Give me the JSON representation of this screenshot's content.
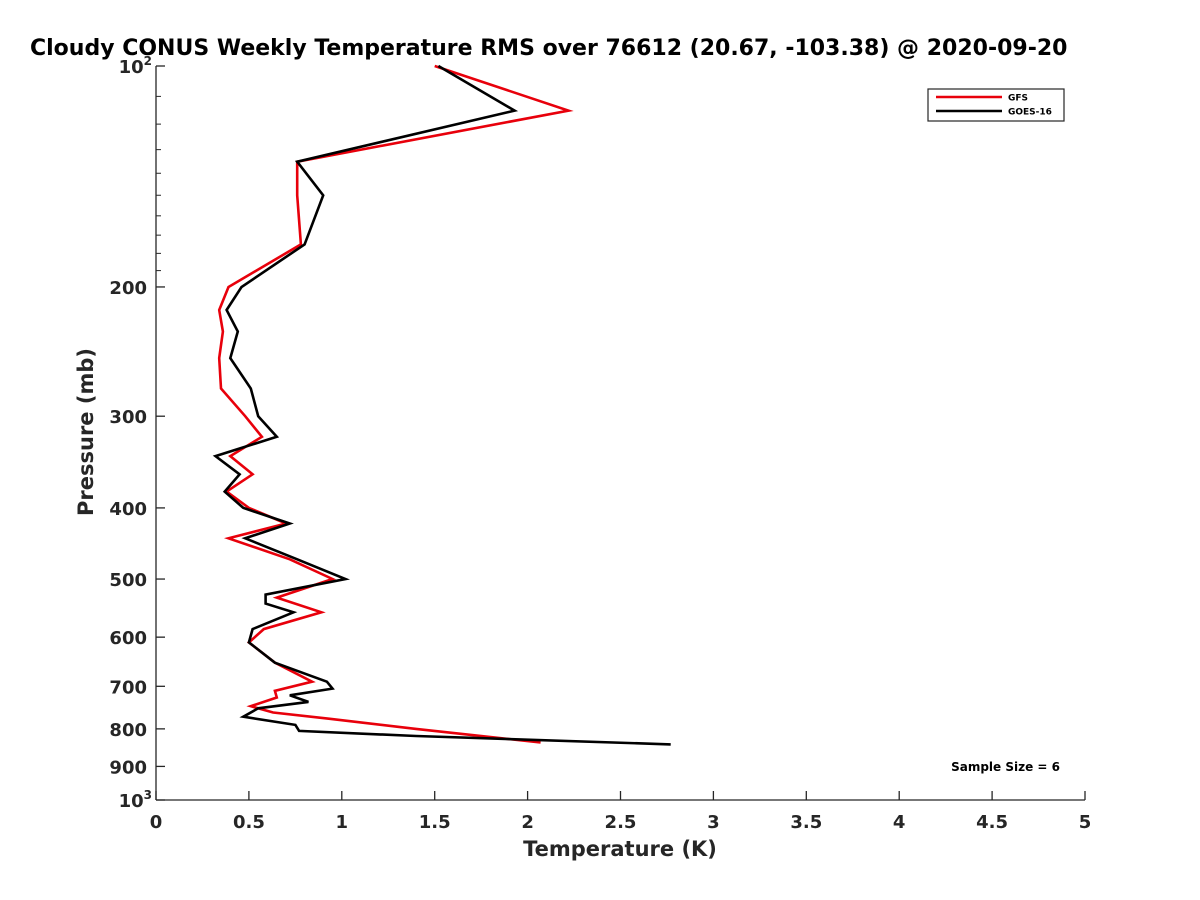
{
  "chart_data": {
    "type": "line",
    "title": "Cloudy CONUS Weekly Temperature RMS over 76612 (20.67, -103.38) @ 2020-09-20",
    "xlabel": "Temperature (K)",
    "ylabel": "Pressure (mb)",
    "xlim": [
      0,
      5
    ],
    "ylim": [
      100,
      1000
    ],
    "y_scale": "log",
    "y_reversed": true,
    "x_ticks": [
      "0",
      "0.5",
      "1",
      "1.5",
      "2",
      "2.5",
      "3",
      "3.5",
      "4",
      "4.5",
      "5"
    ],
    "y_ticks": [
      {
        "value": 100,
        "label": "10",
        "sup": "2"
      },
      {
        "value": 200,
        "label": "200"
      },
      {
        "value": 300,
        "label": "300"
      },
      {
        "value": 400,
        "label": "400"
      },
      {
        "value": 500,
        "label": "500"
      },
      {
        "value": 600,
        "label": "600"
      },
      {
        "value": 700,
        "label": "700"
      },
      {
        "value": 800,
        "label": "800"
      },
      {
        "value": 900,
        "label": "900"
      },
      {
        "value": 1000,
        "label": "10",
        "sup": "3"
      }
    ],
    "legend_position": "top-right",
    "annotation": "Sample Size = 6",
    "series": [
      {
        "name": "GFS",
        "color": "#e8000b",
        "points": [
          [
            1.5,
            100
          ],
          [
            2.22,
            115
          ],
          [
            0.76,
            135
          ],
          [
            0.76,
            150
          ],
          [
            0.78,
            175
          ],
          [
            0.39,
            200
          ],
          [
            0.34,
            215
          ],
          [
            0.36,
            230
          ],
          [
            0.34,
            250
          ],
          [
            0.35,
            275
          ],
          [
            0.48,
            300
          ],
          [
            0.57,
            320
          ],
          [
            0.4,
            340
          ],
          [
            0.52,
            360
          ],
          [
            0.38,
            380
          ],
          [
            0.5,
            400
          ],
          [
            0.7,
            420
          ],
          [
            0.39,
            440
          ],
          [
            0.72,
            470
          ],
          [
            0.95,
            500
          ],
          [
            0.65,
            530
          ],
          [
            0.89,
            555
          ],
          [
            0.58,
            585
          ],
          [
            0.5,
            610
          ],
          [
            0.64,
            650
          ],
          [
            0.84,
            690
          ],
          [
            0.64,
            710
          ],
          [
            0.65,
            725
          ],
          [
            0.51,
            745
          ],
          [
            0.63,
            760
          ],
          [
            0.93,
            775
          ],
          [
            1.4,
            800
          ],
          [
            2.07,
            835
          ]
        ]
      },
      {
        "name": "GOES-16",
        "color": "#000000",
        "points": [
          [
            1.52,
            100
          ],
          [
            1.93,
            115
          ],
          [
            0.76,
            135
          ],
          [
            0.9,
            150
          ],
          [
            0.8,
            175
          ],
          [
            0.46,
            200
          ],
          [
            0.38,
            215
          ],
          [
            0.44,
            230
          ],
          [
            0.4,
            250
          ],
          [
            0.51,
            275
          ],
          [
            0.55,
            300
          ],
          [
            0.65,
            320
          ],
          [
            0.32,
            340
          ],
          [
            0.45,
            360
          ],
          [
            0.37,
            380
          ],
          [
            0.47,
            400
          ],
          [
            0.72,
            420
          ],
          [
            0.48,
            440
          ],
          [
            0.76,
            470
          ],
          [
            1.02,
            500
          ],
          [
            0.59,
            525
          ],
          [
            0.59,
            540
          ],
          [
            0.74,
            555
          ],
          [
            0.52,
            585
          ],
          [
            0.5,
            610
          ],
          [
            0.64,
            650
          ],
          [
            0.92,
            690
          ],
          [
            0.95,
            705
          ],
          [
            0.72,
            720
          ],
          [
            0.82,
            735
          ],
          [
            0.55,
            750
          ],
          [
            0.47,
            770
          ],
          [
            0.75,
            790
          ],
          [
            0.77,
            805
          ],
          [
            1.4,
            818
          ],
          [
            2.77,
            840
          ]
        ]
      }
    ]
  }
}
